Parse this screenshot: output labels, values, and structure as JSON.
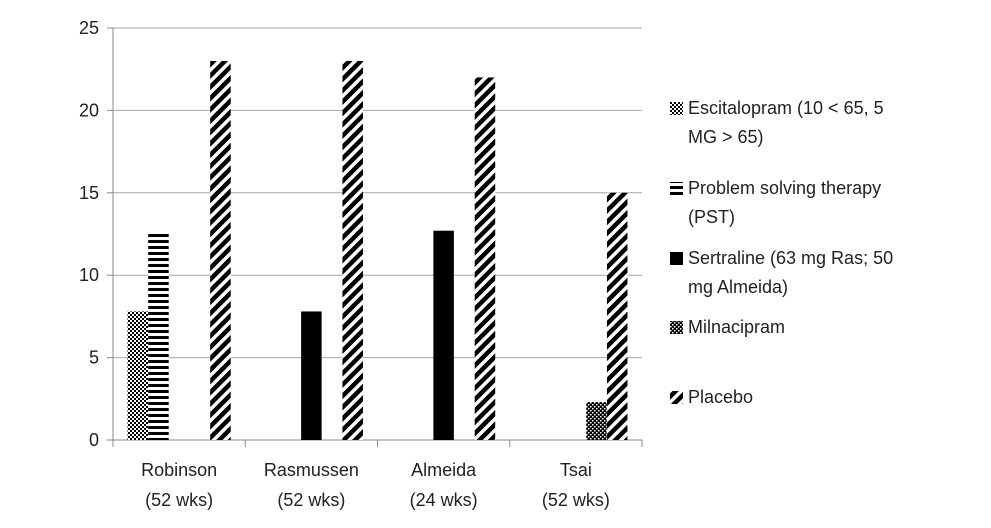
{
  "chart_data": {
    "type": "bar",
    "categories": [
      [
        "Robinson",
        "(52 wks)"
      ],
      [
        "Rasmussen",
        "(52 wks)"
      ],
      [
        "Almeida",
        "(24 wks)"
      ],
      [
        "Tsai",
        "(52 wks)"
      ]
    ],
    "series": [
      {
        "name": "Escitalopram (10 < 65, 5 MG > 65)",
        "legend_lines": [
          "Escitalopram (10 < 65, 5",
          "MG > 65)"
        ],
        "pattern": "dots",
        "values": [
          7.8,
          null,
          null,
          null
        ]
      },
      {
        "name": "Problem solving therapy (PST)",
        "legend_lines": [
          "Problem solving therapy",
          "(PST)"
        ],
        "pattern": "hstripes",
        "values": [
          12.6,
          null,
          null,
          null
        ]
      },
      {
        "name": "Sertraline (63 mg Ras; 50 mg Almeida)",
        "legend_lines": [
          "Sertraline (63 mg Ras; 50",
          "mg Almeida)"
        ],
        "pattern": "solid",
        "values": [
          null,
          7.8,
          12.7,
          null
        ]
      },
      {
        "name": "Milnacipram",
        "legend_lines": [
          "Milnacipram"
        ],
        "pattern": "checker",
        "values": [
          null,
          null,
          null,
          2.3
        ]
      },
      {
        "name": "Placebo",
        "legend_lines": [
          "Placebo"
        ],
        "pattern": "diag",
        "values": [
          23,
          23,
          22,
          15
        ]
      }
    ],
    "ylim": [
      0,
      25
    ],
    "yticks": [
      0,
      5,
      10,
      15,
      20,
      25
    ],
    "grid": true,
    "legend_position": "right",
    "title": "",
    "xlabel": "",
    "ylabel": ""
  }
}
